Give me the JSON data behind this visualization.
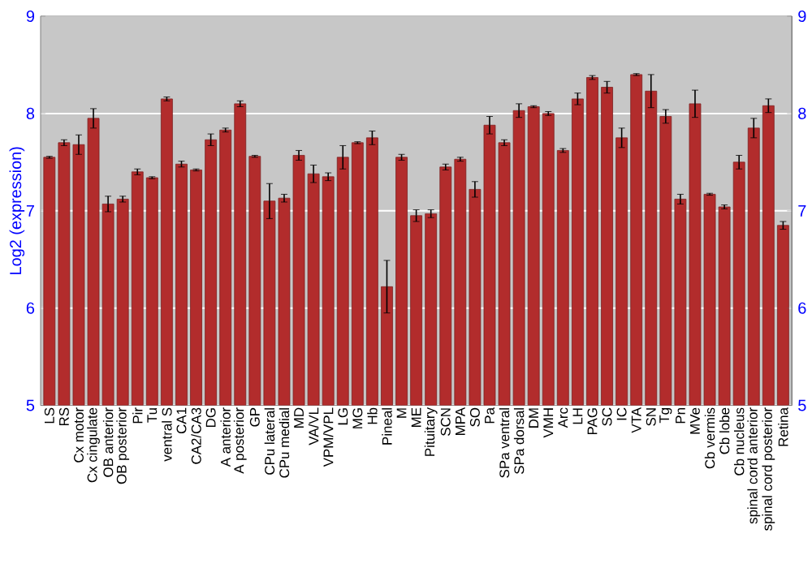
{
  "chart_data": {
    "type": "bar",
    "ylabel": "Log2 (expression)",
    "categories": [
      "LS",
      "RS",
      "Cx motor",
      "Cx cingulate",
      "OB anterior",
      "OB posterior",
      "Pir",
      "Tu",
      "ventral S",
      "CA1",
      "CA2/CA3",
      "DG",
      "A anterior",
      "A posterior",
      "GP",
      "CPu lateral",
      "CPu medial",
      "MD",
      "VA/VL",
      "VPM/VPL",
      "LG",
      "MG",
      "Hb",
      "Pineal",
      "M",
      "ME",
      "Pituitary",
      "SCN",
      "MPA",
      "SO",
      "Pa",
      "SPa ventral",
      "SPa dorsal",
      "DM",
      "VMH",
      "Arc",
      "LH",
      "PAG",
      "SC",
      "IC",
      "VTA",
      "SN",
      "Tg",
      "Pn",
      "MVe",
      "Cb vermis",
      "Cb lobe",
      "Cb nucleus",
      "spinal cord anterior",
      "spinal cord posterior",
      "Retina"
    ],
    "values": [
      7.55,
      7.7,
      7.68,
      7.95,
      7.07,
      7.12,
      7.4,
      7.34,
      8.15,
      7.48,
      7.42,
      7.73,
      7.83,
      8.1,
      7.56,
      7.1,
      7.13,
      7.57,
      7.38,
      7.35,
      7.55,
      7.7,
      7.75,
      6.22,
      7.55,
      6.95,
      6.97,
      7.45,
      7.53,
      7.22,
      7.88,
      7.7,
      8.03,
      8.07,
      8.0,
      7.62,
      8.15,
      8.37,
      8.27,
      7.75,
      8.4,
      8.23,
      7.97,
      7.12,
      8.1,
      7.17,
      7.04,
      7.5,
      7.85,
      8.08,
      6.85
    ],
    "errors": [
      0.01,
      0.03,
      0.1,
      0.1,
      0.08,
      0.03,
      0.03,
      0.01,
      0.02,
      0.03,
      0.01,
      0.06,
      0.02,
      0.03,
      0.01,
      0.18,
      0.04,
      0.05,
      0.09,
      0.04,
      0.12,
      0.01,
      0.07,
      0.27,
      0.03,
      0.06,
      0.04,
      0.03,
      0.02,
      0.08,
      0.09,
      0.03,
      0.07,
      0.01,
      0.02,
      0.02,
      0.06,
      0.02,
      0.06,
      0.1,
      0.01,
      0.17,
      0.07,
      0.05,
      0.14,
      0.01,
      0.02,
      0.07,
      0.1,
      0.07,
      0.04
    ],
    "color": "#b22c2c",
    "ylim": [
      5,
      9
    ],
    "yticks": [
      5,
      6,
      7,
      8,
      9
    ],
    "y2lim": [
      5,
      9
    ],
    "y2ticks": [
      5,
      6,
      7,
      8,
      9
    ],
    "grid": "y"
  }
}
